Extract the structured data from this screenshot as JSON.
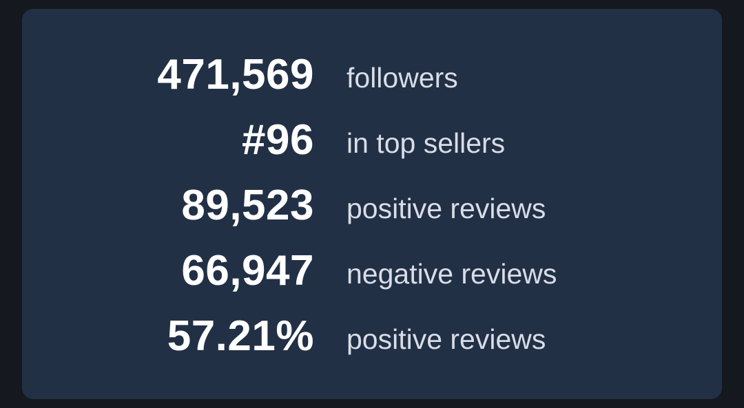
{
  "stats": [
    {
      "value": "471,569",
      "label": "followers"
    },
    {
      "value": "#96",
      "label": "in top sellers"
    },
    {
      "value": "89,523",
      "label": "positive reviews"
    },
    {
      "value": "66,947",
      "label": "negative reviews"
    },
    {
      "value": "57.21%",
      "label": "positive reviews"
    }
  ],
  "colors": {
    "background": "#15191f",
    "card": "#223046",
    "value_text": "#ffffff",
    "label_text": "#d9dde6"
  }
}
